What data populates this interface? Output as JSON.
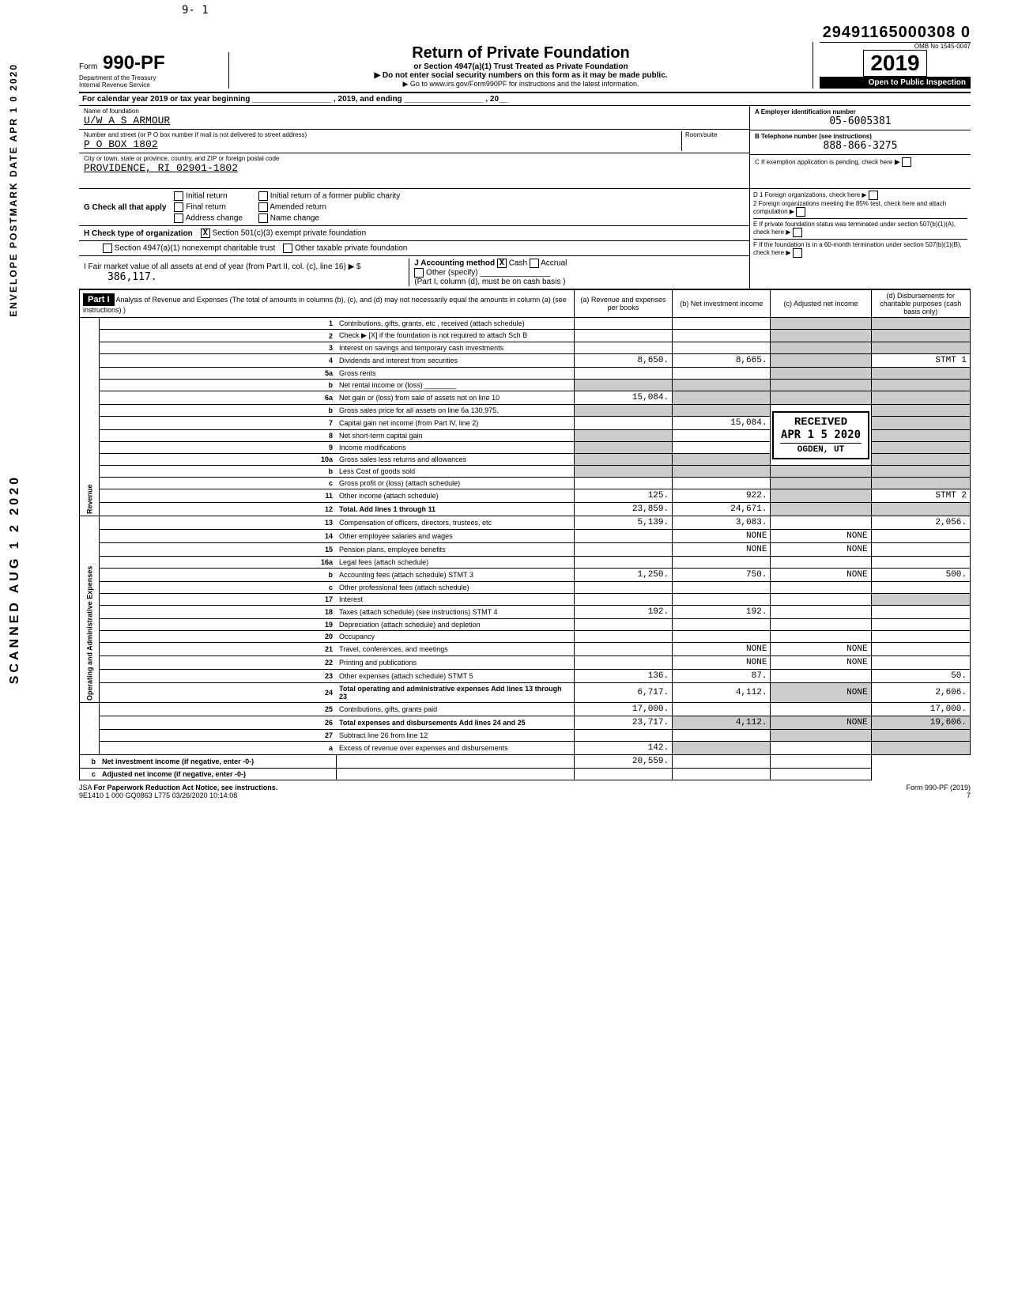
{
  "top_marks": {
    "seq": "9- 1"
  },
  "dln": "29491165000308  0",
  "omb": "OMB No 1545-0047",
  "form": {
    "prefix": "Form",
    "num": "990-PF"
  },
  "dept": [
    "Department of the Treasury",
    "Internal Revenue Service"
  ],
  "title": {
    "main": "Return of Private Foundation",
    "sub": "or Section 4947(a)(1) Trust Treated as Private Foundation",
    "warn": "▶ Do not enter social security numbers on this form as it may be made public.",
    "go": "▶ Go to www.irs.gov/Form990PF for instructions and the latest information."
  },
  "year": "2019",
  "open": "Open to Public Inspection",
  "cal": "For calendar year 2019 or tax year beginning __________________ , 2019, and ending __________________ , 20__",
  "name_label": "Name of foundation",
  "name": "U/W A S ARMOUR",
  "addr_label": "Number and street (or P O  box number if mail is not delivered to street address)",
  "room_label": "Room/suite",
  "addr": "P O BOX 1802",
  "city_label": "City or town, state or province, country, and ZIP or foreign postal code",
  "city": "PROVIDENCE, RI 02901-1802",
  "boxA": {
    "label": "A  Employer identification number",
    "val": "05-6005381"
  },
  "boxB": {
    "label": "B  Telephone number (see instructions)",
    "val": "888-866-3275"
  },
  "boxC": {
    "label": "C  If exemption application is pending, check here"
  },
  "boxD": {
    "d1": "D  1 Foreign organizations, check here",
    "d2": "2 Foreign organizations meeting the 85% test, check here and attach computation"
  },
  "boxE": "E  If private foundation status was terminated under section 507(b)(1)(A), check here",
  "boxF": "F  If the foundation is in a 60-month termination under section 507(b)(1)(B), check here",
  "G": {
    "label": "G  Check all that apply",
    "opts": [
      "Initial return",
      "Final return",
      "Address change",
      "Initial return of a former public charity",
      "Amended return",
      "Name change"
    ]
  },
  "H": {
    "label": "H  Check type of organization",
    "opts": [
      "Section 501(c)(3) exempt private foundation",
      "Section 4947(a)(1) nonexempt charitable trust",
      "Other taxable private foundation"
    ],
    "checked": 0
  },
  "I": {
    "label": "I  Fair market value of all assets at end of year (from Part II, col. (c), line 16) ▶ $",
    "val": "386,117."
  },
  "J": {
    "label": "J Accounting method",
    "opts": [
      "Cash",
      "Accrual"
    ],
    "checked": 0,
    "other": "Other (specify) ________________",
    "note": "(Part I, column (d), must be on cash basis )"
  },
  "part1": {
    "hdr": "Part I",
    "title": "Analysis of Revenue and Expenses (The total of amounts in columns (b), (c), and (d) may not necessarily equal the amounts in column (a) (see instructions) )"
  },
  "cols": {
    "a": "(a) Revenue and expenses per books",
    "b": "(b) Net investment income",
    "c": "(c) Adjusted net income",
    "d": "(d) Disbursements for charitable purposes (cash basis only)"
  },
  "side": {
    "rev": "Revenue",
    "exp": "Operating and Administrative Expenses"
  },
  "rows": [
    {
      "n": "1",
      "d": "Contributions, gifts, grants, etc , received (attach schedule)"
    },
    {
      "n": "2",
      "d": "Check ▶ [X] if the foundation is not required to attach Sch B"
    },
    {
      "n": "3",
      "d": "Interest on savings and temporary cash investments"
    },
    {
      "n": "4",
      "d": "Dividends and interest from securities",
      "a": "8,650.",
      "b": "8,665.",
      "dd": "STMT 1"
    },
    {
      "n": "5a",
      "d": "Gross rents"
    },
    {
      "n": "b",
      "d": "Net rental income or (loss) ________"
    },
    {
      "n": "6a",
      "d": "Net gain or (loss) from sale of assets not on line 10",
      "a": "15,084."
    },
    {
      "n": "b",
      "d": "Gross sales price for all assets on line 6a          130,975."
    },
    {
      "n": "7",
      "d": "Capital gain net income (from Part IV, line 2)",
      "b": "15,084."
    },
    {
      "n": "8",
      "d": "Net short-term capital gain"
    },
    {
      "n": "9",
      "d": "Income modifications"
    },
    {
      "n": "10a",
      "d": "Gross sales less returns and allowances"
    },
    {
      "n": "b",
      "d": "Less Cost of goods sold"
    },
    {
      "n": "c",
      "d": "Gross profit or (loss) (attach schedule)"
    },
    {
      "n": "11",
      "d": "Other income (attach schedule)",
      "a": "125.",
      "b": "922.",
      "dd": "STMT 2"
    },
    {
      "n": "12",
      "d": "Total. Add lines 1 through 11",
      "a": "23,859.",
      "b": "24,671.",
      "bold": true
    },
    {
      "n": "13",
      "d": "Compensation of officers, directors, trustees, etc",
      "a": "5,139.",
      "b": "3,083.",
      "dd": "2,056."
    },
    {
      "n": "14",
      "d": "Other employee salaries and wages",
      "b": "NONE",
      "c": "NONE"
    },
    {
      "n": "15",
      "d": "Pension plans, employee benefits",
      "b": "NONE",
      "c": "NONE"
    },
    {
      "n": "16a",
      "d": "Legal fees (attach schedule)"
    },
    {
      "n": "b",
      "d": "Accounting fees (attach schedule) STMT 3",
      "a": "1,250.",
      "b": "750.",
      "c": "NONE",
      "dd": "500."
    },
    {
      "n": "c",
      "d": "Other professional fees (attach schedule)"
    },
    {
      "n": "17",
      "d": "Interest"
    },
    {
      "n": "18",
      "d": "Taxes (attach schedule) (see instructions) STMT 4",
      "a": "192.",
      "b": "192."
    },
    {
      "n": "19",
      "d": "Depreciation (attach schedule) and depletion"
    },
    {
      "n": "20",
      "d": "Occupancy"
    },
    {
      "n": "21",
      "d": "Travel, conferences, and meetings",
      "b": "NONE",
      "c": "NONE"
    },
    {
      "n": "22",
      "d": "Printing and publications",
      "b": "NONE",
      "c": "NONE"
    },
    {
      "n": "23",
      "d": "Other expenses (attach schedule) STMT 5",
      "a": "136.",
      "b": "87.",
      "dd": "50."
    },
    {
      "n": "24",
      "d": "Total operating and administrative expenses Add lines 13 through 23",
      "a": "6,717.",
      "b": "4,112.",
      "c": "NONE",
      "dd": "2,606.",
      "bold": true
    },
    {
      "n": "25",
      "d": "Contributions, gifts, grants paid",
      "a": "17,000.",
      "dd": "17,000."
    },
    {
      "n": "26",
      "d": "Total expenses and disbursements Add lines 24 and 25",
      "a": "23,717.",
      "b": "4,112.",
      "c": "NONE",
      "dd": "19,606.",
      "bold": true
    },
    {
      "n": "27",
      "d": "Subtract line 26 from line 12"
    },
    {
      "n": "a",
      "d": "Excess of revenue over expenses and disbursements",
      "a": "142."
    },
    {
      "n": "b",
      "d": "Net investment income (if negative, enter -0-)",
      "b": "20,559.",
      "bold": true
    },
    {
      "n": "c",
      "d": "Adjusted net income (if negative, enter -0-)",
      "bold": true
    }
  ],
  "received": {
    "title": "RECEIVED",
    "date": "APR 1 5 2020",
    "loc": "OGDEN, UT"
  },
  "footer": {
    "jsa": "JSA",
    "paperwork": "For Paperwork Reduction Act Notice, see instructions.",
    "form": "Form 990-PF (2019)",
    "code": "9E1410 1 000",
    "batch": "GQ0863 L775 03/26/2020 10:14:08",
    "page": "7"
  },
  "stamps": {
    "postmark": "ENVELOPE POSTMARK DATE APR 1 0 2020",
    "received": "SCANNED  AUG 1 2 2020"
  },
  "colors": {
    "black": "#000000",
    "grey": "#cccccc",
    "white": "#ffffff"
  }
}
